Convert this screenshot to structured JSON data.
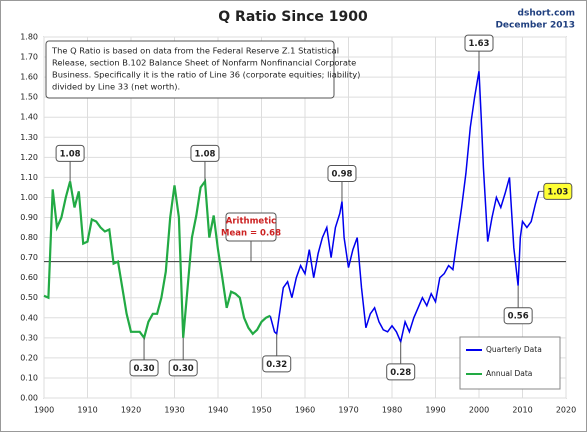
{
  "chart_data": {
    "type": "line",
    "title": "Q Ratio Since 1900",
    "source": [
      "dshort.com",
      "December 2013"
    ],
    "note": [
      "The Q Ratio is based on data from the Federal Reserve Z.1 Statistical",
      "Release, section B.102 Balance Sheet of Nonfarm Nonfinancial Corporate",
      "Business. Specifically it is the ratio of Line 36 (corporate equities; liability)",
      "divided by Line 33 (net worth)."
    ],
    "xlim": [
      1900,
      2020
    ],
    "xticks": [
      1900,
      1910,
      1920,
      1930,
      1940,
      1950,
      1960,
      1970,
      1980,
      1990,
      2000,
      2010,
      2020
    ],
    "ylim": [
      0,
      1.8
    ],
    "yticks": [
      {
        "value": 0,
        "label": "0.00"
      },
      {
        "value": 0.1,
        "label": "0.10"
      },
      {
        "value": 0.2,
        "label": "0.20"
      },
      {
        "value": 0.3,
        "label": "0.30"
      },
      {
        "value": 0.4,
        "label": "0.40"
      },
      {
        "value": 0.5,
        "label": "0.50"
      },
      {
        "value": 0.6,
        "label": "0.60"
      },
      {
        "value": 0.7,
        "label": "0.70"
      },
      {
        "value": 0.8,
        "label": "0.80"
      },
      {
        "value": 0.9,
        "label": "0.90"
      },
      {
        "value": 1.0,
        "label": "1.00"
      },
      {
        "value": 1.1,
        "label": "1.10"
      },
      {
        "value": 1.2,
        "label": "1.20"
      },
      {
        "value": 1.3,
        "label": "1.30"
      },
      {
        "value": 1.4,
        "label": "1.40"
      },
      {
        "value": 1.5,
        "label": "1.50"
      },
      {
        "value": 1.6,
        "label": "1.60"
      },
      {
        "value": 1.7,
        "label": "1.70"
      },
      {
        "value": 1.8,
        "label": "1.80"
      }
    ],
    "grid": true,
    "legend": "bottom-right",
    "series": [
      {
        "name": "Quarterly Data",
        "color": "#0000ee",
        "x": [
          1952,
          1953,
          1953.5,
          1954,
          1955,
          1956,
          1957,
          1958,
          1959,
          1960,
          1961,
          1962,
          1963,
          1964,
          1965,
          1966,
          1967,
          1968,
          1968.5,
          1969,
          1970,
          1971,
          1972,
          1973,
          1974,
          1975,
          1976,
          1977,
          1978,
          1979,
          1980,
          1981,
          1982,
          1983,
          1984,
          1985,
          1986,
          1987,
          1988,
          1989,
          1990,
          1991,
          1992,
          1993,
          1994,
          1995,
          1996,
          1997,
          1998,
          1999,
          2000,
          2000.5,
          2001,
          2002,
          2003,
          2004,
          2005,
          2006,
          2007,
          2008,
          2009,
          2009.5,
          2010,
          2011,
          2012,
          2013,
          2013.75
        ],
        "values": [
          0.41,
          0.33,
          0.32,
          0.4,
          0.55,
          0.58,
          0.5,
          0.6,
          0.66,
          0.62,
          0.74,
          0.6,
          0.72,
          0.8,
          0.85,
          0.7,
          0.85,
          0.92,
          0.98,
          0.8,
          0.65,
          0.74,
          0.8,
          0.55,
          0.35,
          0.42,
          0.45,
          0.38,
          0.34,
          0.33,
          0.36,
          0.33,
          0.28,
          0.38,
          0.33,
          0.4,
          0.45,
          0.5,
          0.46,
          0.52,
          0.48,
          0.6,
          0.62,
          0.66,
          0.64,
          0.8,
          0.95,
          1.12,
          1.35,
          1.5,
          1.63,
          1.4,
          1.15,
          0.78,
          0.9,
          1.0,
          0.95,
          1.02,
          1.1,
          0.75,
          0.56,
          0.8,
          0.88,
          0.85,
          0.88,
          0.97,
          1.03
        ]
      },
      {
        "name": "Annual Data",
        "color": "#22aa44",
        "x": [
          1900,
          1901,
          1902,
          1903,
          1904,
          1905,
          1906,
          1907,
          1908,
          1909,
          1910,
          1911,
          1912,
          1913,
          1914,
          1915,
          1916,
          1917,
          1918,
          1919,
          1920,
          1921,
          1922,
          1923,
          1924,
          1925,
          1926,
          1927,
          1928,
          1929,
          1930,
          1931,
          1932,
          1933,
          1934,
          1935,
          1936,
          1937,
          1938,
          1939,
          1940,
          1941,
          1942,
          1943,
          1944,
          1945,
          1946,
          1947,
          1948,
          1949,
          1950,
          1951,
          1952
        ],
        "values": [
          0.51,
          0.5,
          1.04,
          0.85,
          0.9,
          1.0,
          1.08,
          0.95,
          1.03,
          0.77,
          0.78,
          0.89,
          0.88,
          0.85,
          0.83,
          0.84,
          0.67,
          0.68,
          0.55,
          0.42,
          0.33,
          0.33,
          0.33,
          0.3,
          0.38,
          0.42,
          0.42,
          0.5,
          0.63,
          0.9,
          1.06,
          0.9,
          0.3,
          0.55,
          0.8,
          0.91,
          1.05,
          1.08,
          0.8,
          0.91,
          0.74,
          0.6,
          0.45,
          0.53,
          0.52,
          0.5,
          0.4,
          0.35,
          0.32,
          0.34,
          0.38,
          0.4,
          0.41
        ]
      }
    ],
    "mean": 0.68,
    "mean_label": [
      "Arithmetic",
      "Mean = 0.68"
    ],
    "annotations": [
      {
        "text": "1.08",
        "x": 1906,
        "y": 1.08,
        "position": "above"
      },
      {
        "text": "1.08",
        "x": 1937,
        "y": 1.08,
        "position": "above"
      },
      {
        "text": "0.30",
        "x": 1923,
        "y": 0.3,
        "position": "below"
      },
      {
        "text": "0.30",
        "x": 1932,
        "y": 0.3,
        "position": "below"
      },
      {
        "text": "0.32",
        "x": 1953.5,
        "y": 0.32,
        "position": "below"
      },
      {
        "text": "0.98",
        "x": 1968.5,
        "y": 0.98,
        "position": "above"
      },
      {
        "text": "0.28",
        "x": 1982,
        "y": 0.28,
        "position": "below"
      },
      {
        "text": "1.63",
        "x": 2000,
        "y": 1.63,
        "position": "above"
      },
      {
        "text": "0.56",
        "x": 2009,
        "y": 0.56,
        "position": "below"
      },
      {
        "text": "1.03",
        "x": 2013.75,
        "y": 1.03,
        "position": "right",
        "highlight": true
      }
    ]
  }
}
